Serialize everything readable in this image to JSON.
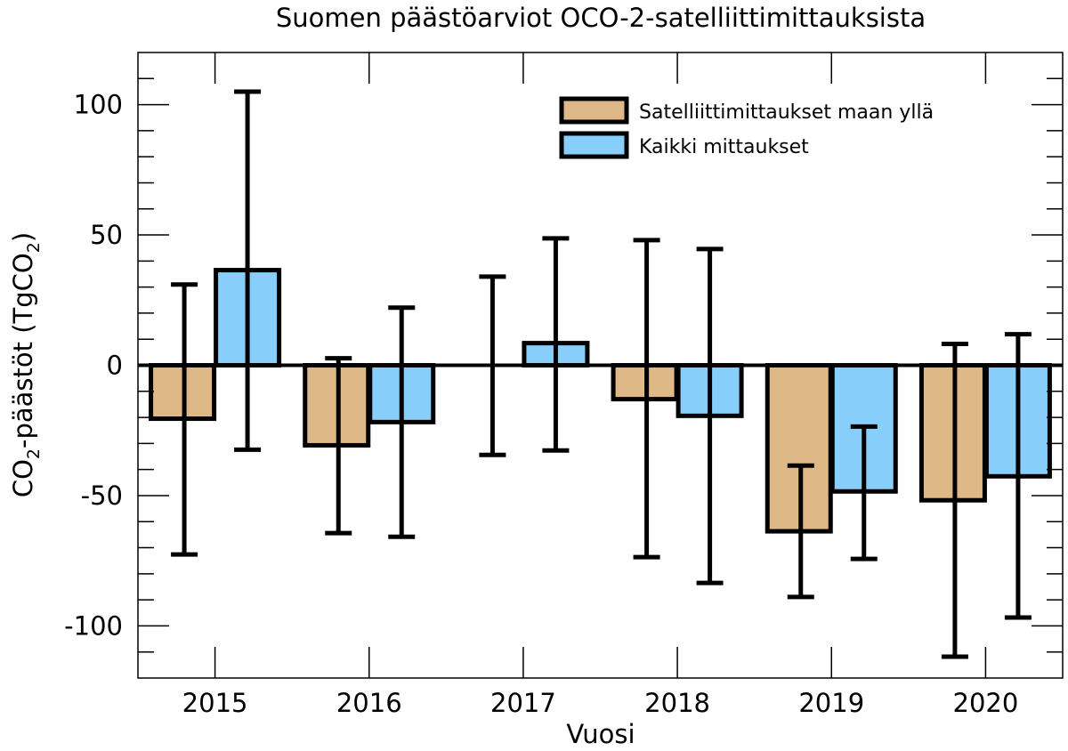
{
  "chart_data": {
    "type": "bar",
    "title": "Suomen päästöarviot OCO-2-satelliittimittauksista",
    "xlabel": "Vuosi",
    "ylabel": {
      "pre": "CO",
      "sub1": "2",
      "mid": "-päästöt (TgCO",
      "sub2": "2",
      "post": ")"
    },
    "categories": [
      "2015",
      "2016",
      "2017",
      "2018",
      "2019",
      "2020"
    ],
    "ylim": [
      -120,
      120
    ],
    "yticks": [
      -100,
      -50,
      0,
      50,
      100
    ],
    "ytick_labels": [
      "-100",
      "-50",
      "0",
      "50",
      "100"
    ],
    "legend_position": "top-right",
    "grid": false,
    "series": [
      {
        "name": "Satelliittimittaukset maan yllä",
        "color": "#DEB887",
        "values": [
          -20.5,
          -30.7,
          0,
          -13,
          -63.7,
          -51.8
        ],
        "error_high": [
          31,
          2.7,
          34,
          48,
          -38.5,
          8.2
        ],
        "error_low": [
          -72.6,
          -64.4,
          -34.4,
          -73.6,
          -88.9,
          -111.8
        ]
      },
      {
        "name": "Kaikki mittaukset",
        "color": "#87CEFA",
        "values": [
          36.5,
          -21.8,
          8.5,
          -19.4,
          -48.4,
          -42.6
        ],
        "error_high": [
          105,
          22.1,
          48.7,
          44.6,
          -23.5,
          11.9
        ],
        "error_low": [
          -32.4,
          -65.8,
          -32.7,
          -83.5,
          -74.3,
          -96.8
        ]
      }
    ]
  }
}
